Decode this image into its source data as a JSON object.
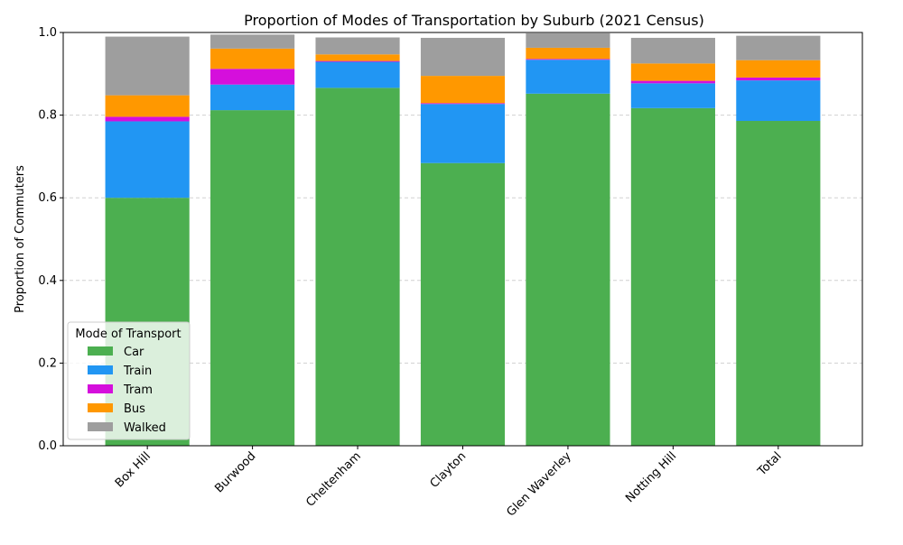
{
  "chart_data": {
    "type": "bar",
    "stacked": true,
    "title": "Proportion of Modes of Transportation by Suburb (2021 Census)",
    "xlabel": "",
    "ylabel": "Proportion of Commuters",
    "ylim": [
      0,
      1.0
    ],
    "yticks": [
      0.0,
      0.2,
      0.4,
      0.6,
      0.8,
      1.0
    ],
    "ytick_labels": [
      "0.0",
      "0.2",
      "0.4",
      "0.6",
      "0.8",
      "1.0"
    ],
    "grid": "horizontal dashed",
    "categories": [
      "Box Hill",
      "Burwood",
      "Cheltenham",
      "Clayton",
      "Glen Waverley",
      "Notting Hill",
      "Total"
    ],
    "legend": {
      "title": "Mode of Transport",
      "position": "lower-left"
    },
    "series": [
      {
        "name": "Car",
        "color": "#4caf50",
        "values": [
          0.6,
          0.812,
          0.866,
          0.684,
          0.852,
          0.817,
          0.786
        ]
      },
      {
        "name": "Train",
        "color": "#2196f3",
        "values": [
          0.185,
          0.062,
          0.063,
          0.143,
          0.082,
          0.06,
          0.098
        ]
      },
      {
        "name": "Tram",
        "color": "#d50fdc",
        "values": [
          0.011,
          0.038,
          0.002,
          0.002,
          0.002,
          0.006,
          0.007
        ]
      },
      {
        "name": "Bus",
        "color": "#ff9800",
        "values": [
          0.052,
          0.049,
          0.016,
          0.066,
          0.027,
          0.042,
          0.042
        ]
      },
      {
        "name": "Walked",
        "color": "#9e9e9e",
        "values": [
          0.142,
          0.034,
          0.041,
          0.092,
          0.035,
          0.062,
          0.059
        ]
      }
    ]
  }
}
